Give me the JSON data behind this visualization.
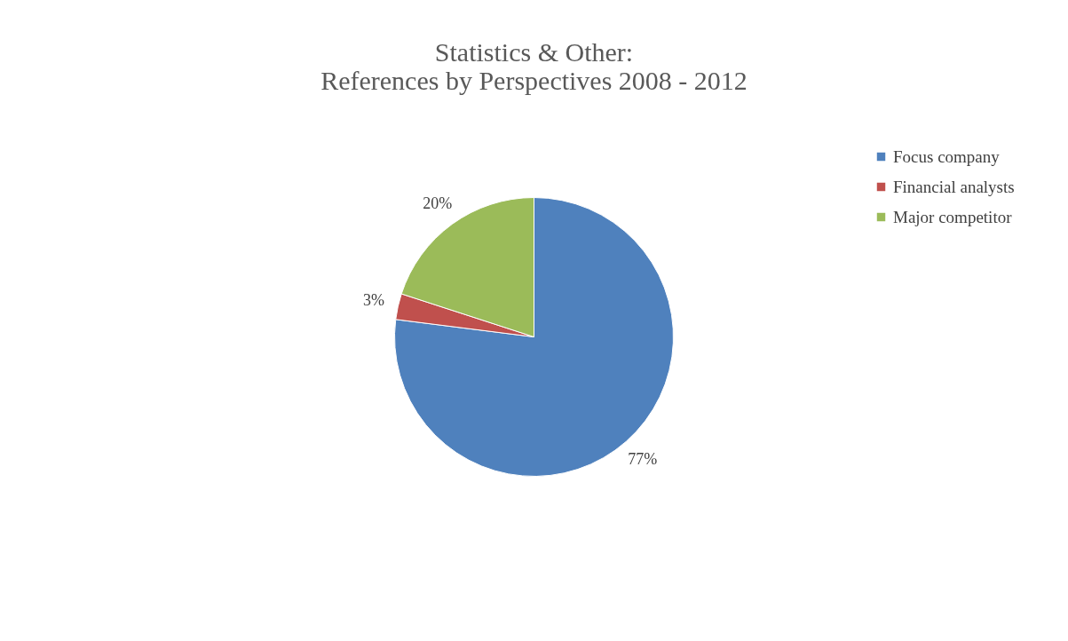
{
  "chart_data": {
    "type": "pie",
    "title": [
      "Statistics & Other:",
      "References by Perspectives 2008 - 2012"
    ],
    "categories": [
      "Focus company",
      "Financial analysts",
      "Major competitor"
    ],
    "values": [
      77,
      3,
      20
    ],
    "colors": [
      "#4f81bd",
      "#c0504d",
      "#9bbb59"
    ],
    "value_labels": [
      "77%",
      "3%",
      "20%"
    ],
    "legend": "right"
  }
}
